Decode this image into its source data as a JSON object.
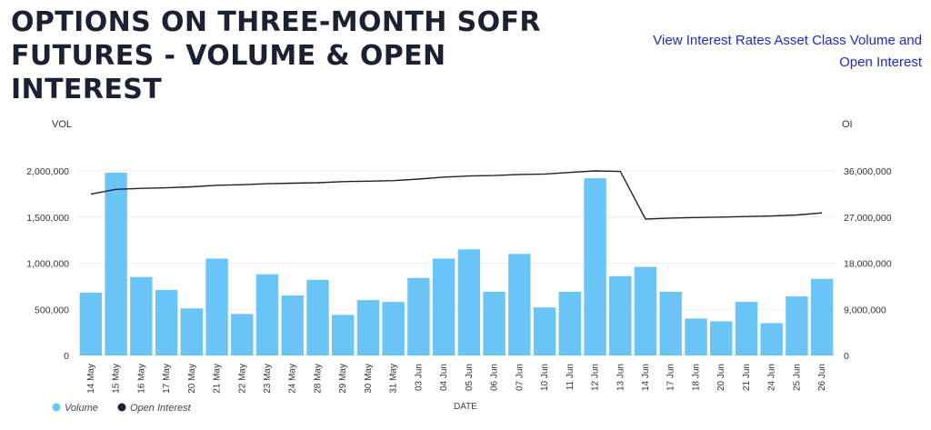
{
  "header": {
    "title": "OPTIONS ON THREE-MONTH SOFR FUTURES - VOLUME & OPEN INTEREST",
    "link_text": "View Interest Rates Asset Class Volume and Open Interest"
  },
  "chart_data": {
    "type": "bar",
    "categories": [
      "14 May",
      "15 May",
      "16 May",
      "17 May",
      "20 May",
      "21 May",
      "22 May",
      "23 May",
      "24 May",
      "28 May",
      "29 May",
      "30 May",
      "31 May",
      "03 Jun",
      "04 Jun",
      "05 Jun",
      "06 Jun",
      "07 Jun",
      "10 Jun",
      "11 Jun",
      "12 Jun",
      "13 Jun",
      "14 Jun",
      "17 Jun",
      "18 Jun",
      "20 Jun",
      "21 Jun",
      "24 Jun",
      "25 Jun",
      "26 Jun"
    ],
    "series": [
      {
        "name": "Volume",
        "type": "bar",
        "axis": "left",
        "color": "#6ac4f5",
        "values": [
          680000,
          1980000,
          850000,
          710000,
          510000,
          1050000,
          450000,
          880000,
          650000,
          820000,
          440000,
          600000,
          580000,
          840000,
          1050000,
          1150000,
          690000,
          1100000,
          520000,
          690000,
          1920000,
          860000,
          960000,
          690000,
          400000,
          370000,
          580000,
          350000,
          640000,
          830000
        ]
      },
      {
        "name": "Open Interest",
        "type": "line",
        "axis": "right",
        "color": "#1c2135",
        "values": [
          31500000,
          32400000,
          32600000,
          32700000,
          32900000,
          33200000,
          33300000,
          33500000,
          33600000,
          33700000,
          33900000,
          34000000,
          34100000,
          34400000,
          34800000,
          35000000,
          35100000,
          35300000,
          35400000,
          35700000,
          36000000,
          35900000,
          26600000,
          26800000,
          26900000,
          27000000,
          27100000,
          27200000,
          27400000,
          27800000
        ]
      }
    ],
    "y_left": {
      "label": "VOL",
      "ticks": [
        "0",
        "500,000",
        "1,000,000",
        "1,500,000",
        "2,000,000"
      ],
      "range": [
        0,
        2000000
      ]
    },
    "y_right": {
      "label": "OI",
      "ticks": [
        "0",
        "9,000,000",
        "18,000,000",
        "27,000,000",
        "36,000,000"
      ],
      "range": [
        0,
        36000000
      ]
    },
    "xlabel": "DATE",
    "grid": true,
    "legend_position": "bottom-left"
  }
}
